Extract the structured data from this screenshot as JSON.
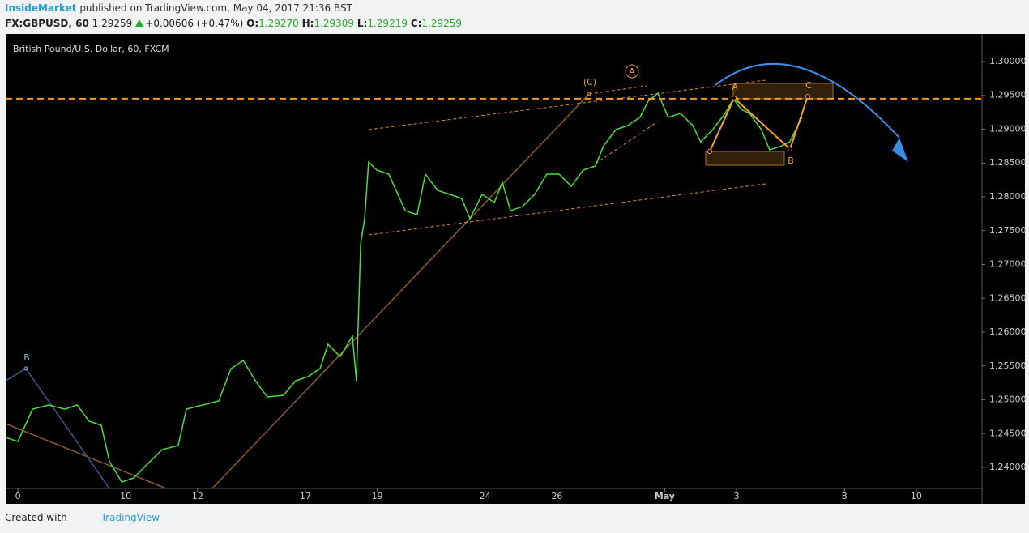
{
  "header": {
    "author": "InsideMarket",
    "published": "published on TradingView.com, May 04, 2017 21:36 BST",
    "symbol": "FX:GBPUSD, 60",
    "last": "1.29259",
    "change": "+0.00606 (+0.47%)",
    "open_label": "O:",
    "open": "1.29270",
    "high_label": "H:",
    "high": "1.29309",
    "low_label": "L:",
    "low": "1.29219",
    "close_label": "C:",
    "close": "1.29259"
  },
  "chart_data": {
    "type": "line",
    "title": "British Pound/U.S. Dollar, 60, FXCM",
    "color": "#4fdc3a",
    "x": [
      -0.34,
      0,
      0.41,
      0.86,
      1.31,
      1.65,
      1.98,
      2.32,
      2.55,
      2.89,
      3.22,
      3.56,
      4.01,
      4.46,
      4.69,
      5.14,
      5.59,
      5.93,
      6.27,
      6.61,
      6.94,
      7.39,
      7.73,
      8.07,
      8.41,
      8.63,
      8.97,
      9.31,
      9.42,
      9.54,
      9.65,
      9.76,
      9.99,
      10.32,
      10.78,
      11.11,
      11.34,
      11.68,
      12.02,
      12.35,
      12.58,
      12.92,
      13.26,
      13.48,
      13.71,
      14.04,
      14.38,
      14.72,
      15.06,
      15.4,
      15.73,
      16.07,
      16.3,
      16.64,
      16.97,
      17.31,
      17.54,
      17.81,
      18.1,
      18.44,
      18.78,
      19.0,
      19.34,
      19.68,
      19.91,
      20.13,
      20.36,
      20.69,
      20.92,
      21.26,
      21.48,
      21.82
    ],
    "values": [
      1.24443,
      1.24383,
      1.24862,
      1.24922,
      1.24862,
      1.24922,
      1.24683,
      1.24623,
      1.24084,
      1.23784,
      1.23844,
      1.24024,
      1.24263,
      1.24323,
      1.24862,
      1.24922,
      1.24982,
      1.25461,
      1.25581,
      1.25281,
      1.25042,
      1.25066,
      1.25281,
      1.25341,
      1.25461,
      1.2582,
      1.25641,
      1.2594,
      1.25281,
      1.27317,
      1.27677,
      1.28515,
      1.28395,
      1.28335,
      1.27796,
      1.27737,
      1.28335,
      1.28096,
      1.28036,
      1.27976,
      1.27677,
      1.28036,
      1.27916,
      1.28216,
      1.27796,
      1.27856,
      1.28036,
      1.28335,
      1.28335,
      1.28156,
      1.28395,
      1.28455,
      1.28754,
      1.28994,
      1.29054,
      1.29174,
      1.29413,
      1.29533,
      1.29174,
      1.29234,
      1.29054,
      1.28814,
      1.28994,
      1.29234,
      1.29449,
      1.29293,
      1.29234,
      1.28994,
      1.28695,
      1.28754,
      1.28814,
      1.29174
    ],
    "xlim": [
      -0.34,
      26.83
    ],
    "xticks": [
      0,
      {
        "value": 3,
        "label": "10"
      },
      {
        "value": 5,
        "label": "12"
      },
      {
        "value": 8,
        "label": "17"
      },
      {
        "value": 10,
        "label": "19"
      },
      {
        "value": 13,
        "label": "24"
      },
      {
        "value": 15,
        "label": "26"
      },
      {
        "value": 18,
        "label": "May"
      },
      {
        "value": 20,
        "label": "3"
      },
      {
        "value": 23,
        "label": "8"
      },
      {
        "value": 25,
        "label": "10"
      }
    ],
    "ylim": [
      1.23689,
      1.30407
    ],
    "yticks": [
      {
        "value": 1.24,
        "label": "1.24000"
      },
      {
        "value": 1.245,
        "label": "1.24500"
      },
      {
        "value": 1.25,
        "label": "1.25000"
      },
      {
        "value": 1.255,
        "label": "1.25500"
      },
      {
        "value": 1.26,
        "label": "1.26000"
      },
      {
        "value": 1.265,
        "label": "1.26500"
      },
      {
        "value": 1.27,
        "label": "1.27000"
      },
      {
        "value": 1.275,
        "label": "1.27500"
      },
      {
        "value": 1.28,
        "label": "1.28000"
      },
      {
        "value": 1.285,
        "label": "1.28500"
      },
      {
        "value": 1.29,
        "label": "1.29000"
      },
      {
        "value": 1.295,
        "label": "1.29500"
      },
      {
        "value": 1.3,
        "label": "1.30000"
      }
    ],
    "hline": 1.2945,
    "hline_color": "#f59a23",
    "grid": false,
    "annotations": [
      "B",
      "(C)",
      "A",
      "A",
      "C",
      "B"
    ]
  },
  "footer": {
    "created": "Created with",
    "brand": "TradingView"
  }
}
